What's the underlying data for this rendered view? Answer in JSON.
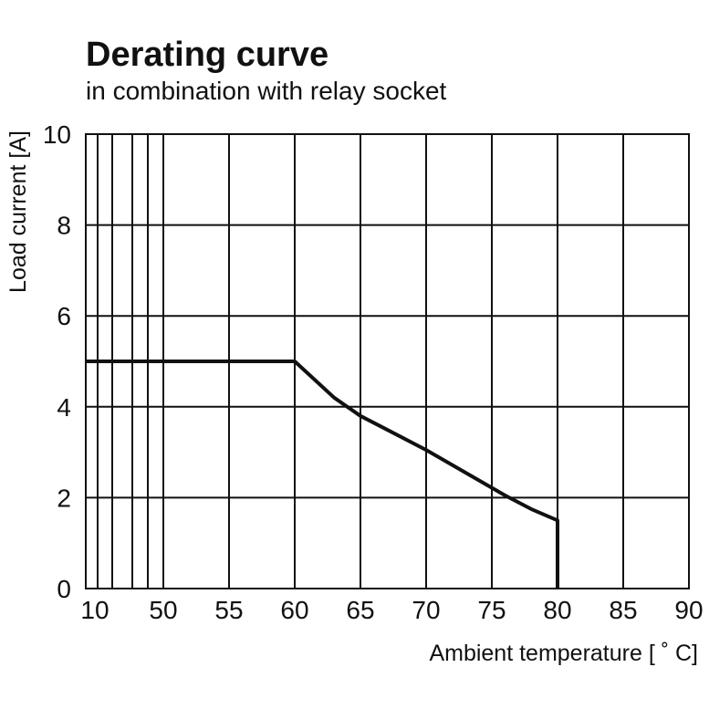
{
  "chart_data": {
    "type": "line",
    "title": "Derating curve",
    "subtitle": "in combination with relay socket",
    "xlabel": "Ambient temperature [ ˚ C]",
    "ylabel": "Load current [A]",
    "x_ticks": [
      10,
      50,
      55,
      60,
      65,
      70,
      75,
      80,
      85,
      90
    ],
    "y_ticks": [
      0,
      2,
      4,
      6,
      8,
      10
    ],
    "ylim": [
      0,
      10
    ],
    "grid": true,
    "series": [
      {
        "points": [
          {
            "x": 10,
            "y": 5
          },
          {
            "x": 60,
            "y": 5
          },
          {
            "x": 63,
            "y": 4.2
          },
          {
            "x": 65,
            "y": 3.8
          },
          {
            "x": 67,
            "y": 3.5
          },
          {
            "x": 70,
            "y": 3.05
          },
          {
            "x": 73,
            "y": 2.55
          },
          {
            "x": 76,
            "y": 2.05
          },
          {
            "x": 78,
            "y": 1.75
          },
          {
            "x": 80,
            "y": 1.5
          },
          {
            "x": 80,
            "y": 0
          }
        ]
      }
    ]
  }
}
